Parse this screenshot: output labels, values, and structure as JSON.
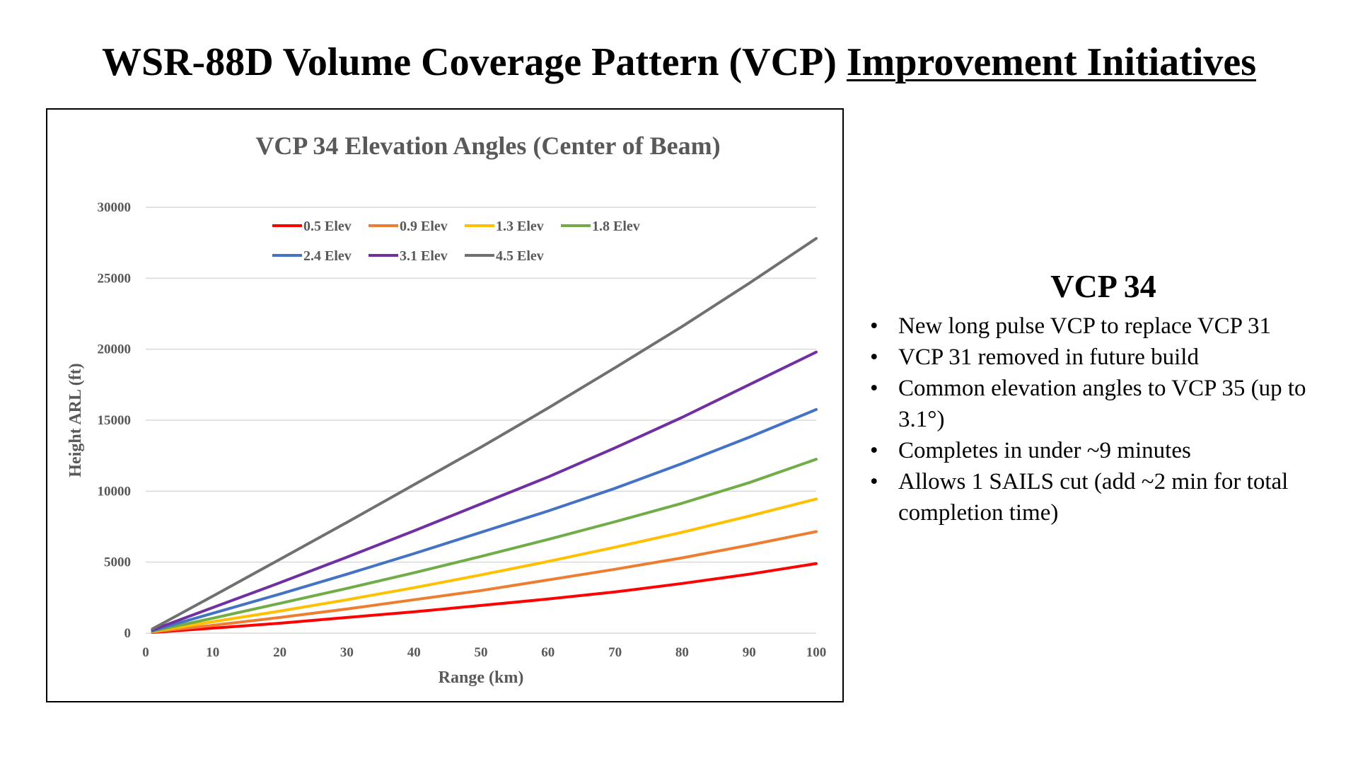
{
  "slide": {
    "title_main": "WSR-88D Volume Coverage Pattern (VCP) ",
    "title_underlined": "Improvement Initiatives"
  },
  "side_panel": {
    "heading": "VCP 34",
    "bullets": [
      "New long pulse VCP to replace VCP 31",
      "VCP 31 removed in future build",
      "Common elevation angles to VCP 35 (up to 3.1°)",
      "Completes in under ~9 minutes",
      "Allows 1 SAILS cut (add ~2 min for total completion time)"
    ]
  },
  "chart_data": {
    "type": "line",
    "title": "VCP 34 Elevation Angles (Center of Beam)",
    "xlabel": "Range (km)",
    "ylabel": "Height ARL (ft)",
    "xlim": [
      0,
      100
    ],
    "ylim": [
      0,
      30000
    ],
    "x_ticks": [
      0,
      10,
      20,
      30,
      40,
      50,
      60,
      70,
      80,
      90,
      100
    ],
    "y_ticks": [
      0,
      5000,
      10000,
      15000,
      20000,
      25000,
      30000
    ],
    "grid": true,
    "legend_position": "top",
    "x": [
      1,
      10,
      20,
      30,
      40,
      50,
      60,
      70,
      80,
      90,
      100
    ],
    "series": [
      {
        "name": "0.5 Elev",
        "color": "#ff0000",
        "values": [
          50,
          350,
          700,
          1100,
          1500,
          1950,
          2400,
          2900,
          3500,
          4150,
          4900
        ]
      },
      {
        "name": "0.9 Elev",
        "color": "#ed7d31",
        "values": [
          80,
          550,
          1100,
          1700,
          2350,
          3000,
          3750,
          4500,
          5300,
          6200,
          7150
        ]
      },
      {
        "name": "1.3 Elev",
        "color": "#ffc000",
        "values": [
          110,
          800,
          1550,
          2350,
          3200,
          4100,
          5050,
          6050,
          7100,
          8250,
          9450
        ]
      },
      {
        "name": "1.8 Elev",
        "color": "#70ad47",
        "values": [
          140,
          1050,
          2100,
          3150,
          4250,
          5400,
          6600,
          7850,
          9150,
          10600,
          12250
        ]
      },
      {
        "name": "2.4 Elev",
        "color": "#4472c4",
        "values": [
          180,
          1400,
          2750,
          4150,
          5600,
          7100,
          8600,
          10200,
          11950,
          13800,
          15750
        ]
      },
      {
        "name": "3.1 Elev",
        "color": "#7030a0",
        "values": [
          220,
          1800,
          3550,
          5350,
          7200,
          9100,
          11000,
          13050,
          15200,
          17500,
          19800
        ]
      },
      {
        "name": "4.5 Elev",
        "color": "#707070",
        "values": [
          300,
          2600,
          5200,
          7800,
          10450,
          13100,
          15850,
          18700,
          21600,
          24650,
          27800
        ]
      }
    ]
  }
}
